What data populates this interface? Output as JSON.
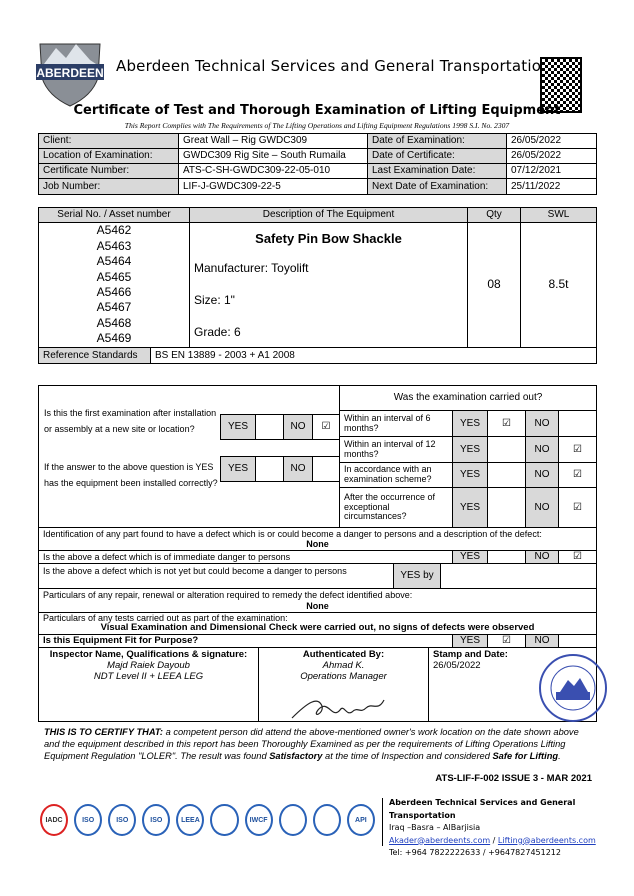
{
  "header": {
    "logo_text": "ABERDEEN",
    "company": "Aberdeen Technical Services and General Transportation",
    "title": "Certificate of Test and Thorough Examination of Lifting Equipment",
    "subtitle": "This Report Complies with The Requirements of The Lifting Operations and Lifting Equipment Regulations 1998 S.I. No. 2307"
  },
  "info": {
    "client_label": "Client:",
    "client": "Great Wall – Rig GWDC309",
    "location_label": "Location of Examination:",
    "location": "GWDC309 Rig Site – South Rumaila",
    "cert_label": "Certificate Number:",
    "cert": "ATS-C-SH-GWDC309-22-05-010",
    "job_label": "Job Number:",
    "job": "LIF-J-GWDC309-22-5",
    "date_exam_label": "Date of Examination:",
    "date_exam": "26/05/2022",
    "date_cert_label": "Date of Certificate:",
    "date_cert": "26/05/2022",
    "last_exam_label": "Last Examination Date:",
    "last_exam": "07/12/2021",
    "next_exam_label": "Next Date of Examination:",
    "next_exam": "25/11/2022"
  },
  "equipment": {
    "headers": [
      "Serial No. / Asset number",
      "Description of The Equipment",
      "Qty",
      "SWL"
    ],
    "serials": [
      "A5462",
      "A5463",
      "A5464",
      "A5465",
      "A5466",
      "A5467",
      "A5468",
      "A5469"
    ],
    "name": "Safety Pin Bow Shackle",
    "manufacturer": "Manufacturer: Toyolift",
    "size": "Size: 1\"",
    "grade": "Grade: 6",
    "qty": "08",
    "swl": "8.5t",
    "ref_label": "Reference Standards",
    "ref_value": "BS EN 13889 - 2003 + A1 2008"
  },
  "exam": {
    "yes": "YES",
    "no": "NO",
    "check": "☑",
    "yes_by": "YES by",
    "q_first": "Is this the first examination after installation or assembly at a new site or location?",
    "q_installed": "If the answer to the above question is YES has the equipment been installed correctly?",
    "carried_out_title": "Was the examination carried out?",
    "intervals": [
      {
        "label": "Within an interval of 6 months?",
        "yes": true
      },
      {
        "label": "Within an interval of 12 months?",
        "yes": false
      },
      {
        "label": "In accordance with an examination scheme?",
        "yes": false
      },
      {
        "label": "After the occurrence of exceptional circumstances?",
        "yes": false
      }
    ],
    "defect_q": "Identification of any part found to have a defect which is or could become a danger to persons and a description of the defect:",
    "defect_a": "None",
    "immediate_q": "Is the above a defect which is of immediate danger to persons",
    "notyet_q": "Is the above a defect which is not yet but could become a danger to persons",
    "repair_q": "Particulars of any repair, renewal or alteration required to remedy the defect identified above:",
    "repair_a": "None",
    "tests_q": "Particulars of any tests carried out as part of the examination:",
    "tests_a": "Visual Examination and Dimensional Check were carried out, no signs of defects were observed",
    "fit_q": "Is this Equipment Fit for Purpose?"
  },
  "signoff": {
    "inspector_label": "Inspector Name, Qualifications & signature:",
    "inspector_name": "Majd Raiek Dayoub",
    "inspector_qual": "NDT Level II + LEEA LEG",
    "auth_label": "Authenticated By:",
    "auth_name": "Ahmad K.",
    "auth_role": "Operations Manager",
    "stamp_label": "Stamp and Date:",
    "stamp_date": "26/05/2022",
    "stamp_text": "ABERDEEN TECHNICAL SERVICES"
  },
  "certify": {
    "lead": "THIS IS TO CERTIFY THAT:",
    "text1": " a competent person did attend the above-mentioned owner's work location on the date shown above and the equipment described in this report has been Thoroughly Examined as per the requirements of Lifting Operations Lifting Equipment Regulation \"LOLER\". The result was found ",
    "satisfactory": "Satisfactory",
    "text2": " at the time of Inspection and considered ",
    "safe": "Safe for Lifting",
    "end": "."
  },
  "form_code": "ATS-LIF-F-002 ISSUE 3 - MAR 2021",
  "footer": {
    "logos": [
      "IADC",
      "ISO",
      "ISO",
      "ISO",
      "LEEA",
      "",
      "IWCF",
      "",
      "",
      "API"
    ],
    "company": "Aberdeen Technical Services and General Transportation",
    "address": "Iraq –Basra – AlBarjisia",
    "email1": "Akader@aberdeents.com",
    "sep": " / ",
    "email2": "Lifting@aberdeents.com",
    "tel": "Tel: +964 7822222633 / +9647827451212"
  },
  "colors": {
    "header_gray": "#d9d9d9",
    "stamp_blue": "#3a4fb0",
    "link": "#1f3fbf"
  }
}
